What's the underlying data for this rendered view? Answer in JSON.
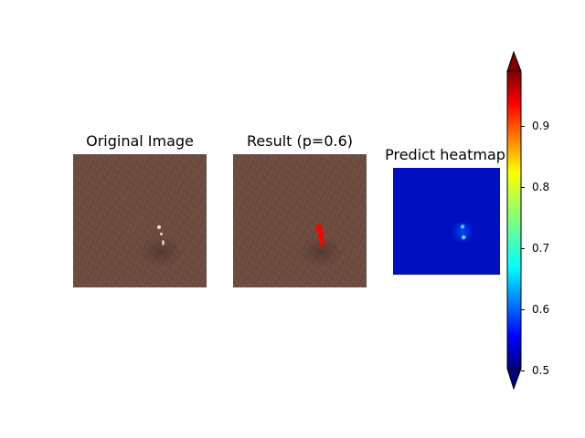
{
  "panels": [
    {
      "title": "Original Image",
      "icon": "original-leather-image"
    },
    {
      "title": "Result (p=0.6)",
      "icon": "result-overlay-image"
    },
    {
      "title": "Predict heatmap",
      "icon": "predict-heatmap-image"
    }
  ],
  "colorbar": {
    "colormap": "jet",
    "range": [
      0.5,
      1.0
    ],
    "extend": "both",
    "ticks": [
      "0.5",
      "0.6",
      "0.7",
      "0.8",
      "0.9"
    ]
  },
  "colors": {
    "leather": "#6d4a3e",
    "result_mark": "#ff0000",
    "heatmap_background": "#0010c0"
  }
}
